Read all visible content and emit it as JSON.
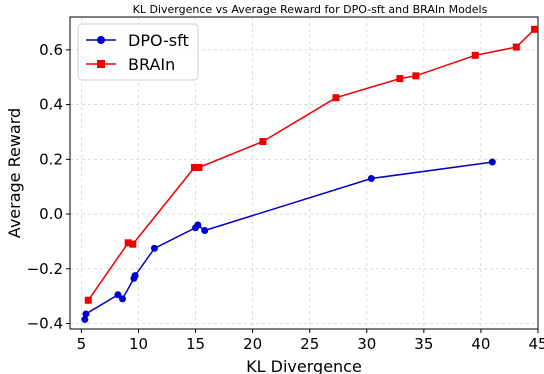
{
  "chart_data": {
    "type": "line",
    "title": "KL Divergence vs Average Reward for DPO-sft and BRAIn Models",
    "xlabel": "KL Divergence",
    "ylabel": "Average Reward",
    "xlim": [
      4,
      45
    ],
    "ylim": [
      -0.42,
      0.72
    ],
    "x_ticks": [
      5,
      10,
      15,
      20,
      25,
      30,
      35,
      40,
      45
    ],
    "x_tick_labels": [
      "5",
      "10",
      "15",
      "20",
      "25",
      "30",
      "35",
      "40",
      "45"
    ],
    "y_ticks": [
      -0.4,
      -0.2,
      0.0,
      0.2,
      0.4,
      0.6
    ],
    "y_tick_labels": [
      "−0.4",
      "−0.2",
      "0.0",
      "0.2",
      "0.4",
      "0.6"
    ],
    "grid": true,
    "legend_position": "upper-left",
    "series": [
      {
        "name": "DPO-sft",
        "color": "#0000cc",
        "marker": "circle",
        "x": [
          5.3,
          5.4,
          8.2,
          8.6,
          9.6,
          9.7,
          11.4,
          15.0,
          15.2,
          15.8,
          30.4,
          41.0
        ],
        "y": [
          -0.385,
          -0.365,
          -0.295,
          -0.31,
          -0.235,
          -0.225,
          -0.125,
          -0.05,
          -0.04,
          -0.06,
          0.13,
          0.19
        ]
      },
      {
        "name": "BRAIn",
        "color": "#ee0000",
        "marker": "square",
        "x": [
          5.6,
          9.1,
          9.5,
          14.9,
          15.3,
          20.9,
          27.3,
          32.9,
          34.3,
          39.5,
          43.1,
          44.7
        ],
        "y": [
          -0.315,
          -0.105,
          -0.11,
          0.17,
          0.17,
          0.265,
          0.425,
          0.495,
          0.505,
          0.58,
          0.61,
          0.675
        ]
      }
    ]
  }
}
